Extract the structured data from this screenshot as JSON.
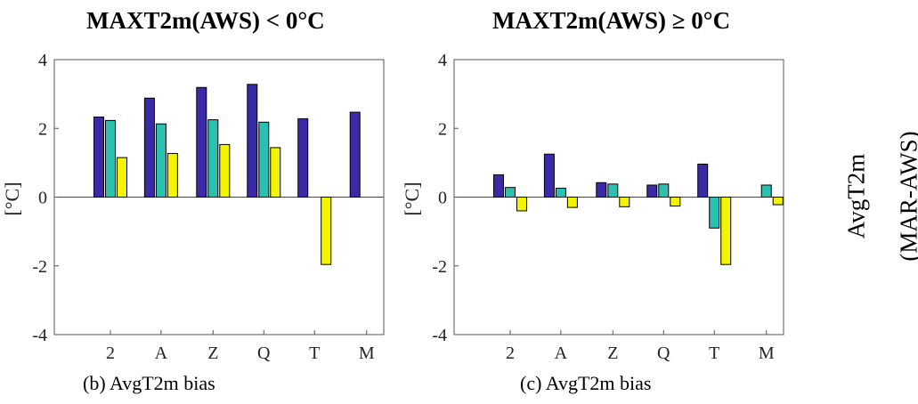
{
  "titles": {
    "left": "MAXT2m(AWS) < 0°C",
    "right": "MAXT2m(AWS) ≥ 0°C"
  },
  "captions": {
    "left": "(b)   AvgT2m bias",
    "right": "(c) AvgT2m bias"
  },
  "side_label": {
    "line1": "AvgT2m",
    "line2": "(MAR-AWS)"
  },
  "colors": {
    "series1": "#3b2aa6",
    "series2": "#2bc0b0",
    "series3": "#f4f400",
    "axis": "#555555"
  },
  "chart_data": [
    {
      "type": "bar",
      "title": "MAXT2m(AWS) < 0°C",
      "ylabel": "[°C]",
      "xlabel": "",
      "ylim": [
        -4,
        4
      ],
      "yticks": [
        -4,
        -2,
        0,
        2,
        4
      ],
      "grid": false,
      "categories": [
        "2",
        "A",
        "Z",
        "Q",
        "T",
        "M"
      ],
      "series": [
        {
          "values": [
            2.33,
            2.88,
            3.19,
            3.28,
            2.28,
            2.47
          ]
        },
        {
          "values": [
            2.23,
            2.13,
            2.25,
            2.18,
            null,
            null
          ]
        },
        {
          "values": [
            1.15,
            1.27,
            1.53,
            1.44,
            -1.96,
            null
          ]
        }
      ]
    },
    {
      "type": "bar",
      "title": "MAXT2m(AWS) ≥ 0°C",
      "ylabel": "[°C]",
      "xlabel": "",
      "ylim": [
        -4,
        4
      ],
      "yticks": [
        -4,
        -2,
        0,
        2,
        4
      ],
      "grid": false,
      "categories": [
        "2",
        "A",
        "Z",
        "Q",
        "T",
        "M"
      ],
      "series": [
        {
          "values": [
            0.65,
            1.25,
            0.42,
            0.35,
            0.96,
            null
          ]
        },
        {
          "values": [
            0.28,
            0.26,
            0.38,
            0.38,
            -0.9,
            0.35
          ]
        },
        {
          "values": [
            -0.4,
            -0.3,
            -0.28,
            -0.26,
            -1.96,
            -0.22
          ]
        }
      ]
    }
  ]
}
